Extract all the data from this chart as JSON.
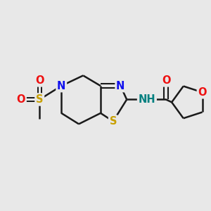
{
  "bg_color": "#e8e8e8",
  "bond_color": "#1a1a1a",
  "bond_width": 1.8,
  "atom_colors": {
    "N": "#1010ee",
    "S": "#c8a000",
    "O": "#ee1010",
    "NH": "#008080",
    "C": "#1a1a1a"
  },
  "font_size": 10.5,
  "figsize": [
    3.0,
    3.0
  ],
  "dpi": 100,
  "xlim": [
    -3.8,
    3.8
  ],
  "ylim": [
    -2.8,
    2.8
  ]
}
